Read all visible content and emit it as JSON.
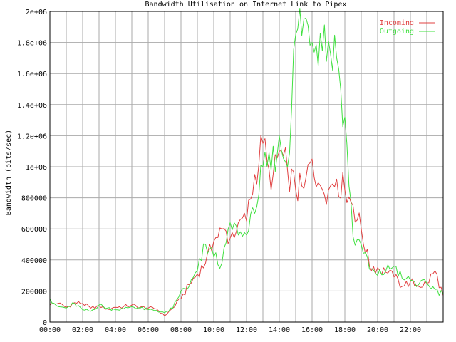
{
  "chart_data": {
    "type": "line",
    "title": "Bandwidth Utilisation on Internet Link to Pipex",
    "xlabel": "",
    "ylabel": "Bandwidth (bits/sec)",
    "xlim": [
      0,
      24
    ],
    "ylim": [
      0,
      2000000
    ],
    "x_ticks": [
      "00:00",
      "02:00",
      "04:00",
      "06:00",
      "08:00",
      "10:00",
      "12:00",
      "14:00",
      "16:00",
      "18:00",
      "20:00",
      "22:00"
    ],
    "y_ticks": [
      "0",
      "200000",
      "400000",
      "600000",
      "800000",
      "1e+06",
      "1.2e+06",
      "1.4e+06",
      "1.6e+06",
      "1.8e+06",
      "2e+06"
    ],
    "grid": true,
    "legend": "top-right",
    "colors": {
      "background": "#ffffff",
      "grid": "#aaaaaa",
      "incoming": "#e04040",
      "outgoing": "#40e040"
    },
    "x": [
      "00:00",
      "00:30",
      "01:00",
      "01:30",
      "02:00",
      "02:30",
      "03:00",
      "03:30",
      "04:00",
      "04:30",
      "05:00",
      "05:30",
      "06:00",
      "06:30",
      "07:00",
      "07:30",
      "08:00",
      "08:30",
      "09:00",
      "09:30",
      "10:00",
      "10:30",
      "11:00",
      "11:30",
      "12:00",
      "12:30",
      "13:00",
      "13:30",
      "14:00",
      "14:30",
      "15:00",
      "15:30",
      "16:00",
      "16:30",
      "17:00",
      "17:30",
      "18:00",
      "18:30",
      "19:00",
      "19:30",
      "20:00",
      "20:30",
      "21:00",
      "21:30",
      "22:00",
      "22:30",
      "23:00",
      "23:30",
      "24:00"
    ],
    "series": [
      {
        "name": "Incoming",
        "color": "#e04040",
        "values": [
          110000,
          120000,
          95000,
          125000,
          120000,
          90000,
          105000,
          85000,
          95000,
          100000,
          110000,
          95000,
          90000,
          85000,
          40000,
          90000,
          150000,
          240000,
          310000,
          380000,
          520000,
          600000,
          540000,
          640000,
          650000,
          950000,
          1150000,
          850000,
          1100000,
          980000,
          850000,
          860000,
          1050000,
          880000,
          850000,
          920000,
          850000,
          750000,
          600000,
          360000,
          350000,
          320000,
          290000,
          230000,
          260000,
          230000,
          250000,
          330000,
          170000
        ]
      },
      {
        "name": "Outgoing",
        "color": "#40e040",
        "values": [
          150000,
          100000,
          90000,
          120000,
          80000,
          70000,
          110000,
          90000,
          80000,
          85000,
          100000,
          90000,
          80000,
          75000,
          60000,
          90000,
          200000,
          230000,
          330000,
          500000,
          420000,
          380000,
          640000,
          560000,
          560000,
          700000,
          1000000,
          980000,
          1200000,
          1000000,
          1850000,
          1950000,
          1800000,
          1860000,
          1810000,
          1700000,
          1320000,
          550000,
          500000,
          340000,
          300000,
          330000,
          360000,
          280000,
          270000,
          240000,
          250000,
          210000,
          180000
        ]
      }
    ]
  }
}
